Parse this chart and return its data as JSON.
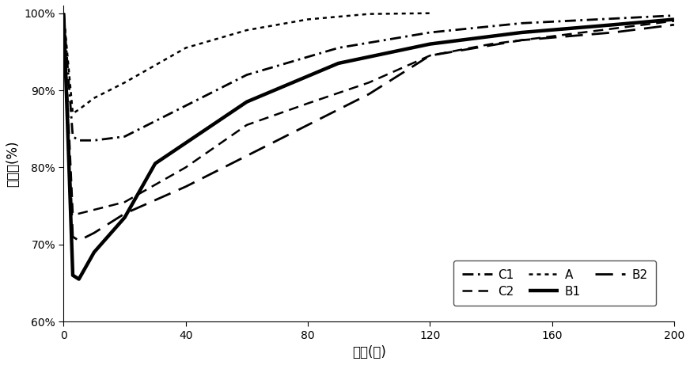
{
  "title": "",
  "xlabel": "시간(분)",
  "ylabel": "잔존률(%)",
  "xlim": [
    0,
    200
  ],
  "ylim": [
    0.6,
    1.01
  ],
  "yticks": [
    0.6,
    0.7,
    0.8,
    0.9,
    1.0
  ],
  "xticks": [
    0,
    40,
    80,
    120,
    160,
    200
  ],
  "series": {
    "C1": {
      "x": [
        0,
        3,
        5,
        10,
        20,
        30,
        60,
        90,
        120,
        150,
        180,
        200
      ],
      "y": [
        1.0,
        0.84,
        0.835,
        0.835,
        0.84,
        0.86,
        0.92,
        0.955,
        0.975,
        0.987,
        0.993,
        0.997
      ]
    },
    "C2": {
      "x": [
        0,
        3,
        5,
        10,
        20,
        40,
        60,
        80,
        100,
        120,
        140,
        160,
        180,
        200
      ],
      "y": [
        1.0,
        0.74,
        0.74,
        0.745,
        0.755,
        0.8,
        0.855,
        0.883,
        0.91,
        0.945,
        0.96,
        0.97,
        0.98,
        0.99
      ]
    },
    "A": {
      "x": [
        0,
        3,
        5,
        10,
        20,
        40,
        60,
        80,
        100,
        120
      ],
      "y": [
        1.0,
        0.87,
        0.875,
        0.89,
        0.91,
        0.955,
        0.978,
        0.992,
        0.999,
        1.0
      ]
    },
    "B1": {
      "x": [
        0,
        3,
        5,
        10,
        20,
        30,
        60,
        90,
        120,
        150,
        180,
        200
      ],
      "y": [
        1.0,
        0.66,
        0.655,
        0.69,
        0.735,
        0.805,
        0.885,
        0.935,
        0.96,
        0.975,
        0.985,
        0.992
      ]
    },
    "B2": {
      "x": [
        0,
        3,
        5,
        10,
        20,
        40,
        60,
        80,
        100,
        120,
        150,
        180,
        200
      ],
      "y": [
        1.0,
        0.71,
        0.705,
        0.715,
        0.74,
        0.775,
        0.815,
        0.855,
        0.895,
        0.945,
        0.965,
        0.975,
        0.985
      ]
    }
  },
  "background_color": "#ffffff",
  "figsize": [
    8.72,
    4.61
  ],
  "dpi": 100
}
